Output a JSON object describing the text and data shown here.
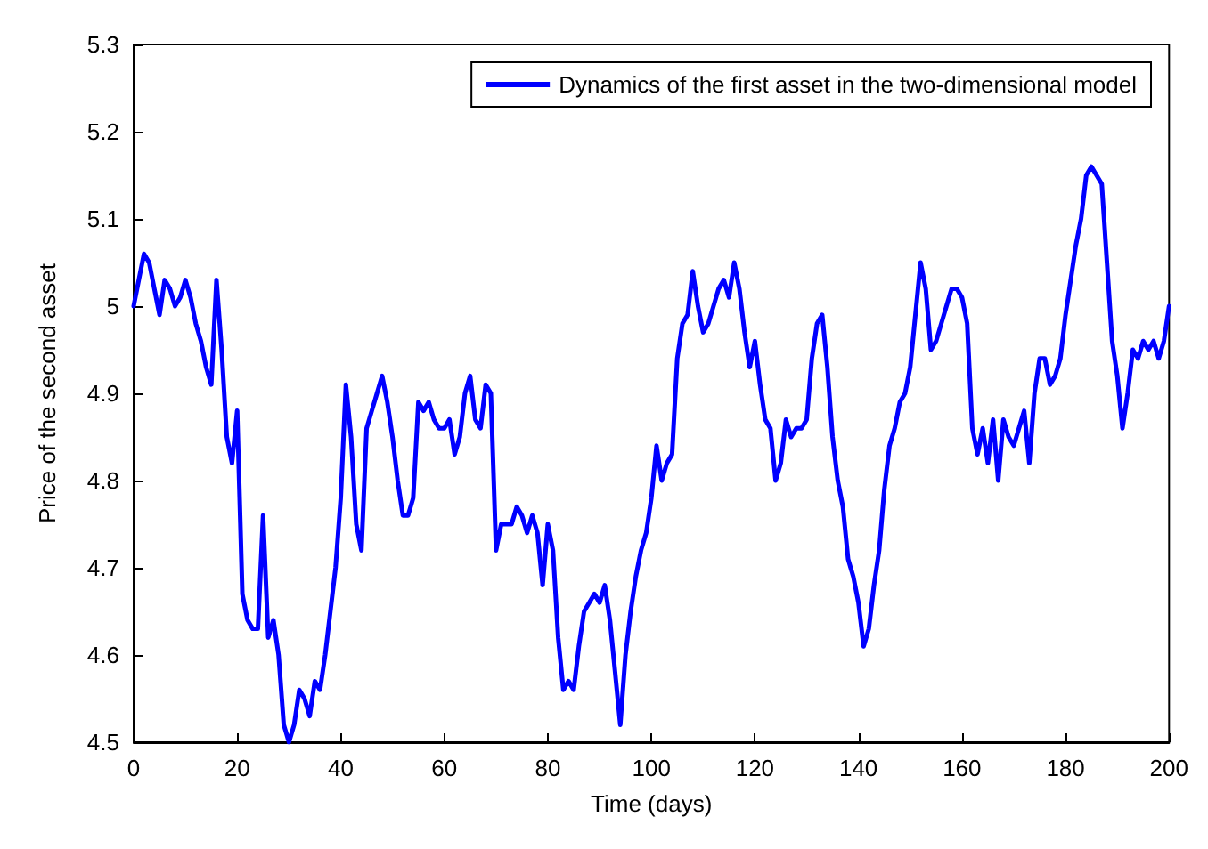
{
  "chart_data": {
    "type": "line",
    "xlabel": "Time (days)",
    "ylabel": "Price of the second asset",
    "x": [
      0,
      1,
      2,
      3,
      4,
      5,
      6,
      7,
      8,
      9,
      10,
      11,
      12,
      13,
      14,
      15,
      16,
      17,
      18,
      19,
      20,
      21,
      22,
      23,
      24,
      25,
      26,
      27,
      28,
      29,
      30,
      31,
      32,
      33,
      34,
      35,
      36,
      37,
      38,
      39,
      40,
      41,
      42,
      43,
      44,
      45,
      46,
      47,
      48,
      49,
      50,
      51,
      52,
      53,
      54,
      55,
      56,
      57,
      58,
      59,
      60,
      61,
      62,
      63,
      64,
      65,
      66,
      67,
      68,
      69,
      70,
      71,
      72,
      73,
      74,
      75,
      76,
      77,
      78,
      79,
      80,
      81,
      82,
      83,
      84,
      85,
      86,
      87,
      88,
      89,
      90,
      91,
      92,
      93,
      94,
      95,
      96,
      97,
      98,
      99,
      100,
      101,
      102,
      103,
      104,
      105,
      106,
      107,
      108,
      109,
      110,
      111,
      112,
      113,
      114,
      115,
      116,
      117,
      118,
      119,
      120,
      121,
      122,
      123,
      124,
      125,
      126,
      127,
      128,
      129,
      130,
      131,
      132,
      133,
      134,
      135,
      136,
      137,
      138,
      139,
      140,
      141,
      142,
      143,
      144,
      145,
      146,
      147,
      148,
      149,
      150,
      151,
      152,
      153,
      154,
      155,
      156,
      157,
      158,
      159,
      160,
      161,
      162,
      163,
      164,
      165,
      166,
      167,
      168,
      169,
      170,
      171,
      172,
      173,
      174,
      175,
      176,
      177,
      178,
      179,
      180,
      181,
      182,
      183,
      184,
      185,
      186,
      187,
      188,
      189,
      190,
      191,
      192,
      193,
      194,
      195,
      196,
      197,
      198,
      199,
      200
    ],
    "series": [
      {
        "name": "Dynamics of the first asset in the two-dimensional model",
        "color": "#0000ff",
        "values": [
          5.0,
          5.03,
          5.06,
          5.05,
          5.02,
          4.99,
          5.03,
          5.02,
          5.0,
          5.01,
          5.03,
          5.01,
          4.98,
          4.96,
          4.93,
          4.91,
          5.03,
          4.95,
          4.85,
          4.82,
          4.88,
          4.67,
          4.64,
          4.63,
          4.63,
          4.76,
          4.62,
          4.64,
          4.6,
          4.52,
          4.5,
          4.52,
          4.56,
          4.55,
          4.53,
          4.57,
          4.56,
          4.6,
          4.65,
          4.7,
          4.78,
          4.91,
          4.85,
          4.75,
          4.72,
          4.86,
          4.88,
          4.9,
          4.92,
          4.89,
          4.85,
          4.8,
          4.76,
          4.76,
          4.78,
          4.89,
          4.88,
          4.89,
          4.87,
          4.86,
          4.86,
          4.87,
          4.83,
          4.85,
          4.9,
          4.92,
          4.87,
          4.86,
          4.91,
          4.9,
          4.72,
          4.75,
          4.75,
          4.75,
          4.77,
          4.76,
          4.74,
          4.76,
          4.74,
          4.68,
          4.75,
          4.72,
          4.62,
          4.56,
          4.57,
          4.56,
          4.61,
          4.65,
          4.66,
          4.67,
          4.66,
          4.68,
          4.64,
          4.58,
          4.52,
          4.6,
          4.65,
          4.69,
          4.72,
          4.74,
          4.78,
          4.84,
          4.8,
          4.82,
          4.83,
          4.94,
          4.98,
          4.99,
          5.04,
          5.0,
          4.97,
          4.98,
          5.0,
          5.02,
          5.03,
          5.01,
          5.05,
          5.02,
          4.97,
          4.93,
          4.96,
          4.91,
          4.87,
          4.86,
          4.8,
          4.82,
          4.87,
          4.85,
          4.86,
          4.86,
          4.87,
          4.94,
          4.98,
          4.99,
          4.93,
          4.85,
          4.8,
          4.77,
          4.71,
          4.69,
          4.66,
          4.61,
          4.63,
          4.68,
          4.72,
          4.79,
          4.84,
          4.86,
          4.89,
          4.9,
          4.93,
          4.99,
          5.05,
          5.02,
          4.95,
          4.96,
          4.98,
          5.0,
          5.02,
          5.02,
          5.01,
          4.98,
          4.86,
          4.83,
          4.86,
          4.82,
          4.87,
          4.8,
          4.87,
          4.85,
          4.84,
          4.86,
          4.88,
          4.82,
          4.9,
          4.94,
          4.94,
          4.91,
          4.92,
          4.94,
          4.99,
          5.03,
          5.07,
          5.1,
          5.15,
          5.16,
          5.15,
          5.14,
          5.05,
          4.96,
          4.92,
          4.86,
          4.9,
          4.95,
          4.94,
          4.96,
          4.95,
          4.96,
          4.94,
          4.96,
          5.0
        ]
      }
    ],
    "xlim": [
      0,
      200
    ],
    "xticks": [
      0,
      20,
      40,
      60,
      80,
      100,
      120,
      140,
      160,
      180,
      200
    ],
    "ylim": [
      4.5,
      5.3
    ],
    "yticks": [
      4.5,
      4.6,
      4.7,
      4.8,
      4.9,
      5,
      5.1,
      5.2,
      5.3
    ],
    "grid": false,
    "legend": "top right",
    "marker": "none",
    "line_style": "solid"
  }
}
